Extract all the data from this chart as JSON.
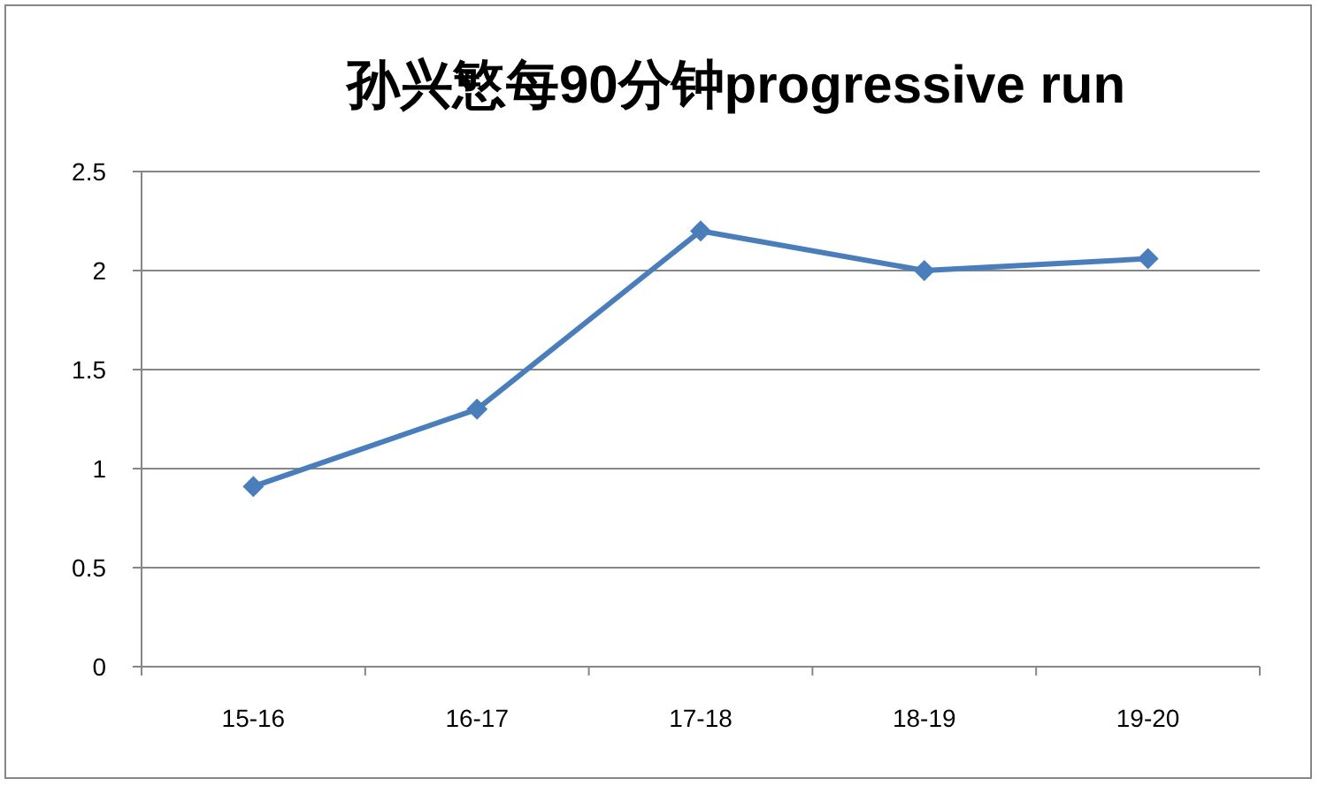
{
  "chart_data": {
    "type": "line",
    "title": "孙兴慜每90分钟progressive run",
    "categories": [
      "15-16",
      "16-17",
      "17-18",
      "18-19",
      "19-20"
    ],
    "series": [
      {
        "color": "#4a7ebb",
        "values": [
          0.91,
          1.3,
          2.2,
          2.0,
          2.06
        ]
      }
    ],
    "ylim": [
      0,
      2.5
    ],
    "yticks": [
      0,
      0.5,
      1,
      1.5,
      2,
      2.5
    ],
    "grid": "y",
    "marker": "diamond",
    "line_style": "solid"
  }
}
